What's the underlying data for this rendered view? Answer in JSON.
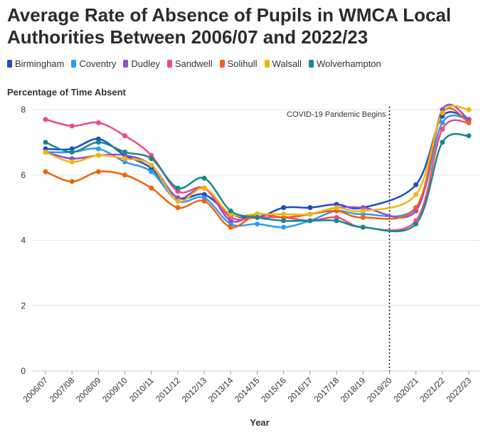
{
  "title": "Average Rate of Absence of Pupils in WMCA Local Authorities Between 2006/07 and 2022/23",
  "chart_data": {
    "type": "line",
    "title": "Average Rate of Absence of Pupils in WMCA Local Authorities Between 2006/07 and 2022/23",
    "ylabel": "Percentage of Time Absent",
    "xlabel": "Year",
    "ylim": [
      0,
      8
    ],
    "yticks": [
      0,
      2,
      4,
      6,
      8
    ],
    "grid": true,
    "legend_position": "top",
    "categories": [
      "2006/07",
      "2007/08",
      "2008/09",
      "2009/10",
      "2010/11",
      "2011/12",
      "2012/13",
      "2013/14",
      "2014/15",
      "2015/16",
      "2016/17",
      "2017/18",
      "2018/19",
      "2019/20",
      "2020/21",
      "2021/22",
      "2022/23"
    ],
    "annotation": {
      "label": "COVID-19 Pandemic Begins",
      "category": "2019/20"
    },
    "series": [
      {
        "name": "Birmingham",
        "color": "#1f4fc1",
        "values": [
          6.8,
          6.8,
          7.1,
          6.6,
          6.2,
          5.3,
          5.4,
          4.8,
          4.7,
          5.0,
          5.0,
          5.1,
          5.0,
          null,
          5.7,
          7.8,
          7.7
        ]
      },
      {
        "name": "Coventry",
        "color": "#2b9bf4",
        "values": [
          6.7,
          6.7,
          6.8,
          6.4,
          6.1,
          5.2,
          5.3,
          4.5,
          4.5,
          4.4,
          4.6,
          4.9,
          4.8,
          null,
          5.0,
          7.6,
          7.7
        ]
      },
      {
        "name": "Dudley",
        "color": "#8e4fd6",
        "values": [
          6.7,
          6.5,
          6.6,
          6.6,
          6.3,
          5.3,
          5.6,
          4.6,
          4.8,
          4.7,
          4.8,
          5.0,
          5.0,
          null,
          4.9,
          8.0,
          7.7
        ]
      },
      {
        "name": "Sandwell",
        "color": "#ec4b88",
        "values": [
          7.7,
          7.5,
          7.6,
          7.2,
          6.6,
          5.5,
          5.6,
          4.7,
          4.7,
          4.7,
          4.6,
          4.7,
          4.4,
          null,
          4.6,
          7.4,
          7.6
        ]
      },
      {
        "name": "Solihull",
        "color": "#f0630f",
        "values": [
          6.1,
          5.8,
          6.1,
          6.0,
          5.6,
          5.0,
          5.2,
          4.4,
          4.8,
          4.7,
          4.8,
          4.9,
          4.7,
          null,
          5.0,
          7.9,
          7.6
        ]
      },
      {
        "name": "Walsall",
        "color": "#f2b50f",
        "values": [
          6.7,
          6.4,
          6.6,
          6.5,
          6.3,
          5.2,
          5.6,
          4.8,
          4.8,
          4.8,
          4.8,
          5.0,
          4.9,
          null,
          5.4,
          7.9,
          8.0
        ]
      },
      {
        "name": "Wolverhampton",
        "color": "#158a8a",
        "values": [
          7.0,
          6.7,
          7.0,
          6.7,
          6.5,
          5.6,
          5.9,
          4.9,
          4.7,
          4.6,
          4.6,
          4.6,
          4.4,
          null,
          4.5,
          7.0,
          7.2
        ]
      }
    ]
  }
}
